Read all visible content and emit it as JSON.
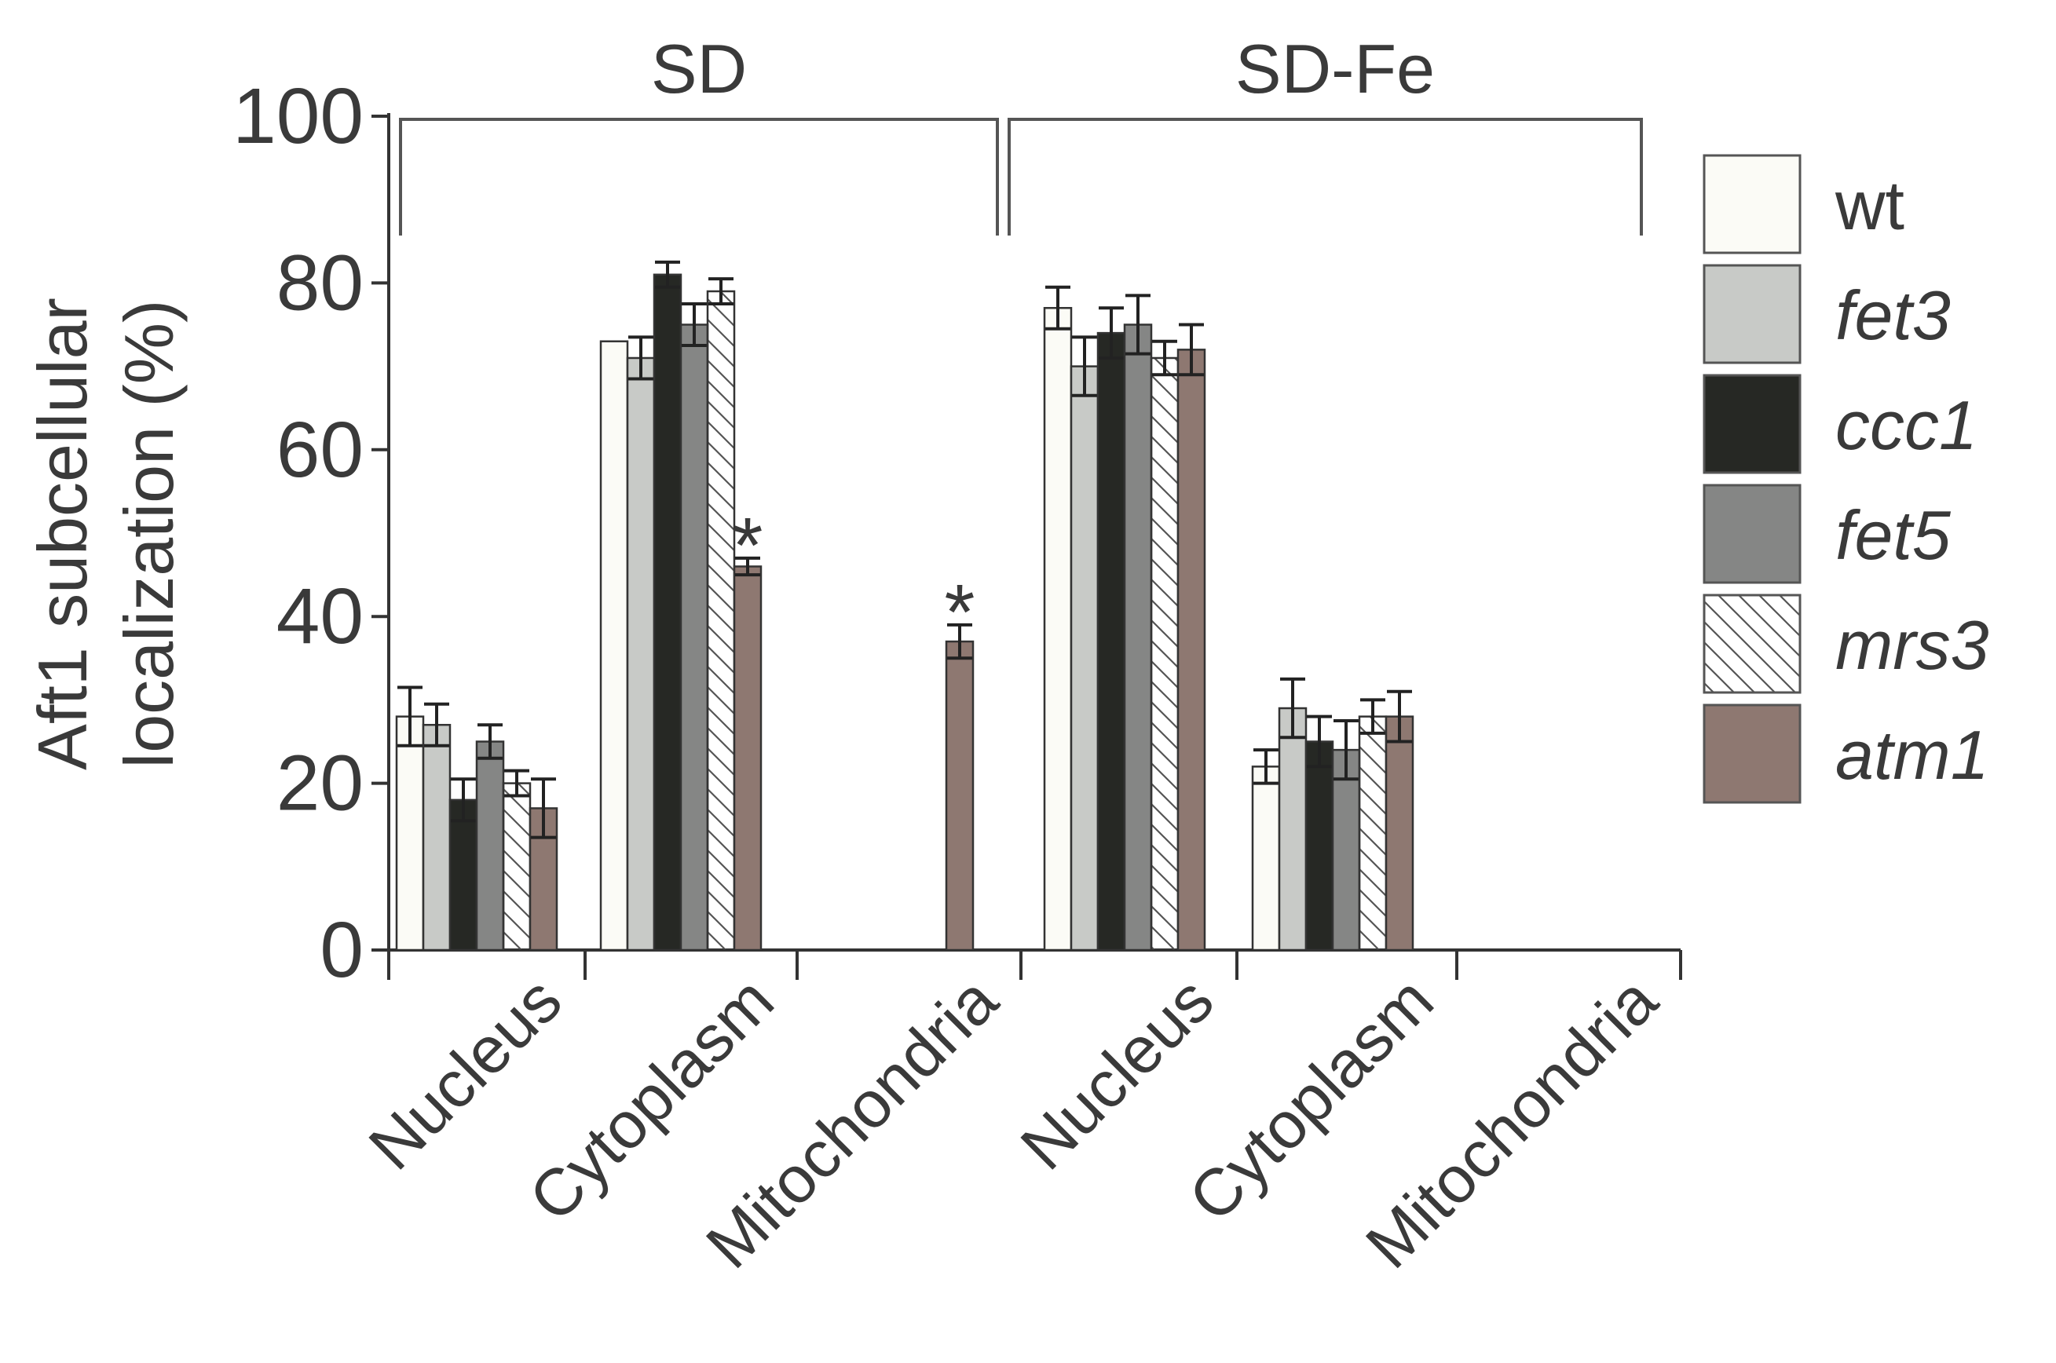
{
  "chart_data": {
    "type": "bar",
    "title": "",
    "ylabel": [
      "Aft1 subcellular",
      "localization (%)"
    ],
    "xlabel": "",
    "ylim": [
      0,
      100
    ],
    "yticks": [
      0,
      20,
      40,
      60,
      80,
      100
    ],
    "groups": [
      {
        "name": "SD",
        "categories": [
          "Nucleus",
          "Cytoplasm",
          "Mitochondria"
        ]
      },
      {
        "name": "SD-Fe",
        "categories": [
          "Nucleus",
          "Cytoplasm",
          "Mitochondria"
        ]
      }
    ],
    "series": [
      {
        "name": "wt",
        "italic": false,
        "fill": "#fbfbf6",
        "pattern": "none",
        "values": [
          28,
          73,
          0,
          77,
          22,
          0
        ],
        "errors": [
          3.5,
          0,
          0,
          2.5,
          2,
          0
        ]
      },
      {
        "name": "fet3",
        "italic": true,
        "fill": "#c8cac7",
        "pattern": "none",
        "values": [
          27,
          71,
          0,
          70,
          29,
          0
        ],
        "errors": [
          2.5,
          2.5,
          0,
          3.5,
          3.5,
          0
        ]
      },
      {
        "name": "ccc1",
        "italic": true,
        "fill": "#262824",
        "pattern": "none",
        "values": [
          18,
          81,
          0,
          74,
          25,
          0
        ],
        "errors": [
          2.5,
          1.5,
          0,
          3,
          3,
          0
        ]
      },
      {
        "name": "fet5",
        "italic": true,
        "fill": "#858685",
        "pattern": "none",
        "values": [
          25,
          75,
          0,
          75,
          24,
          0
        ],
        "errors": [
          2,
          2.5,
          0,
          3.5,
          3.5,
          0
        ]
      },
      {
        "name": "mrs3",
        "italic": true,
        "fill": "#ffffff",
        "pattern": "hatch",
        "values": [
          20,
          79,
          0,
          71,
          28,
          0
        ],
        "errors": [
          1.5,
          1.5,
          0,
          2,
          2,
          0
        ]
      },
      {
        "name": "atm1",
        "italic": true,
        "fill": "#8e7871",
        "pattern": "none",
        "values": [
          17,
          46,
          37,
          72,
          28,
          0
        ],
        "errors": [
          3.5,
          1,
          2,
          3,
          3,
          0
        ]
      }
    ],
    "annotations": [
      {
        "text": "*",
        "series": "atm1",
        "group": 0,
        "category": 1
      },
      {
        "text": "*",
        "series": "atm1",
        "group": 0,
        "category": 2
      }
    ],
    "legend": "right"
  }
}
